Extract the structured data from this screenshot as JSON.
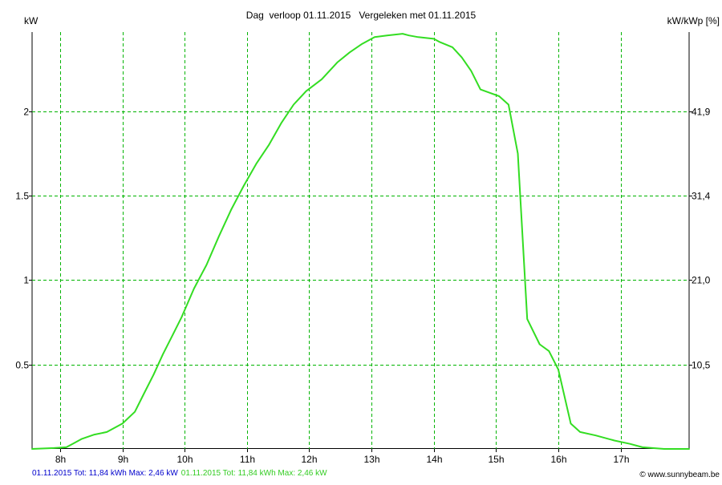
{
  "colors": {
    "series_line": "#33dd22",
    "grid": "#00b400",
    "axis": "#000000",
    "footer_blue": "#0000cc",
    "footer_green": "#33cc22"
  },
  "chart_data": {
    "type": "line",
    "title": "Dag  verloop 01.11.2015   Vergeleken met 01.11.2015",
    "left_axis_label": "kW",
    "right_axis_label": "kW/kWp [%]",
    "xlim": [
      7.55,
      18.1
    ],
    "ylim": [
      0,
      2.47
    ],
    "x_ticks": [
      8,
      9,
      10,
      11,
      12,
      13,
      14,
      15,
      16,
      17
    ],
    "x_tick_labels": [
      "8h",
      "9h",
      "10h",
      "11h",
      "12h",
      "13h",
      "14h",
      "15h",
      "16h",
      "17h"
    ],
    "y_ticks": [
      0.5,
      1,
      1.5,
      2
    ],
    "y_tick_labels": [
      "0.5",
      "1",
      "1.5",
      "2"
    ],
    "right_tick_labels": [
      "10,5",
      "21,0",
      "31,4",
      "41,9"
    ],
    "grid": true,
    "series": [
      {
        "x": [
          7.55,
          7.9,
          8.1,
          8.2,
          8.35,
          8.55,
          8.75,
          9.0,
          9.2,
          9.35,
          9.5,
          9.65,
          9.8,
          9.95,
          10.15,
          10.35,
          10.55,
          10.75,
          10.95,
          11.15,
          11.35,
          11.55,
          11.75,
          11.95,
          12.2,
          12.45,
          12.65,
          12.85,
          13.05,
          13.25,
          13.5,
          13.6,
          13.75,
          14.0,
          14.1,
          14.3,
          14.45,
          14.6,
          14.75,
          14.9,
          15.05,
          15.2,
          15.35,
          15.5,
          15.7,
          15.85,
          16.0,
          16.2,
          16.35,
          16.6,
          16.9,
          17.15,
          17.35,
          17.7,
          18.1
        ],
        "y": [
          0.0,
          0.005,
          0.01,
          0.03,
          0.06,
          0.085,
          0.1,
          0.15,
          0.22,
          0.33,
          0.44,
          0.56,
          0.67,
          0.78,
          0.95,
          1.09,
          1.26,
          1.42,
          1.56,
          1.69,
          1.8,
          1.93,
          2.04,
          2.12,
          2.19,
          2.29,
          2.35,
          2.4,
          2.44,
          2.45,
          2.46,
          2.45,
          2.44,
          2.43,
          2.41,
          2.38,
          2.32,
          2.24,
          2.13,
          2.11,
          2.09,
          2.04,
          1.75,
          0.77,
          0.62,
          0.58,
          0.47,
          0.15,
          0.1,
          0.08,
          0.05,
          0.03,
          0.01,
          0.0,
          0.0
        ]
      }
    ]
  },
  "footer": {
    "legend_blue": "01.11.2015 Tot: 11,84 kWh Max: 2,46 kW",
    "legend_green": "01.11.2015 Tot: 11,84 kWh Max: 2,46 kW",
    "copyright": "© www.sunnybeam.be"
  }
}
